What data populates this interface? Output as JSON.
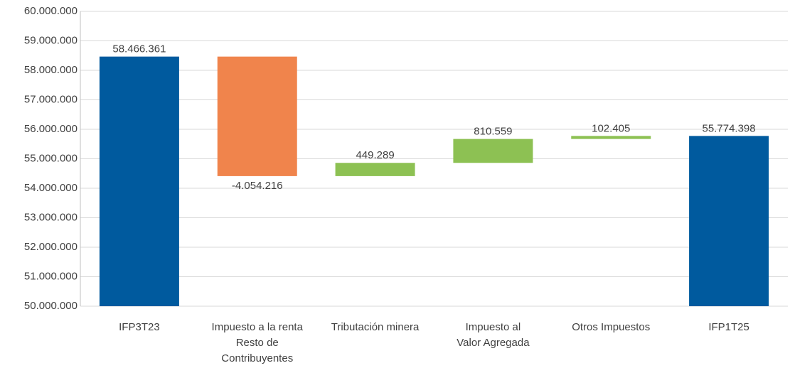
{
  "chart_data": {
    "type": "waterfall",
    "categories": [
      [
        "IFP3T23"
      ],
      [
        "Impuesto a la renta",
        "Resto de",
        "Contribuyentes"
      ],
      [
        "Tributación minera"
      ],
      [
        "Impuesto al",
        "Valor Agregada"
      ],
      [
        "Otros Impuestos"
      ],
      [
        "IFP1T25"
      ]
    ],
    "values": [
      58466361,
      -4054216,
      449289,
      810559,
      102405,
      55774398
    ],
    "value_labels": [
      "58.466.361",
      "-4.054.216",
      "449.289",
      "810.559",
      "102.405",
      "55.774.398"
    ],
    "measure": [
      "total",
      "relative",
      "relative",
      "relative",
      "relative",
      "total"
    ],
    "colors": {
      "total": "#005a9e",
      "decrease": "#f0844c",
      "increase": "#8dc153"
    },
    "ylim": [
      50000000,
      60000000
    ],
    "yticks": [
      {
        "value": 50000000,
        "label": "50.000.000"
      },
      {
        "value": 51000000,
        "label": "51.000.000"
      },
      {
        "value": 52000000,
        "label": "52.000.000"
      },
      {
        "value": 53000000,
        "label": "53.000.000"
      },
      {
        "value": 54000000,
        "label": "54.000.000"
      },
      {
        "value": 55000000,
        "label": "55.000.000"
      },
      {
        "value": 56000000,
        "label": "56.000.000"
      },
      {
        "value": 57000000,
        "label": "57.000.000"
      },
      {
        "value": 58000000,
        "label": "58.000.000"
      },
      {
        "value": 59000000,
        "label": "59.000.000"
      },
      {
        "value": 60000000,
        "label": "60.000.000"
      }
    ],
    "grid": true
  }
}
